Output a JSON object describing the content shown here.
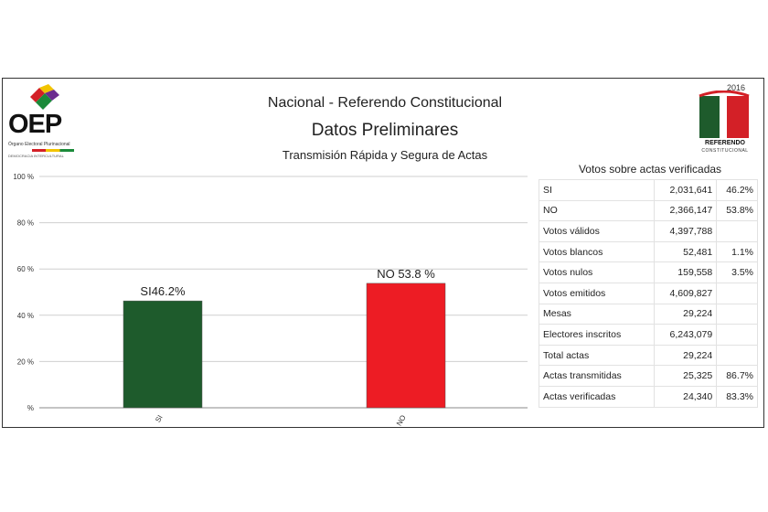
{
  "header": {
    "title_line1": "Nacional - Referendo Constitucional",
    "title_line2": "Datos Preliminares",
    "title_line3": "Transmisión Rápida y Segura de Actas"
  },
  "logo_oep": {
    "acronym": "OEP",
    "subtitle": "Órgano Electoral Plurinacional",
    "tagline": "DEMOCRACIA INTERCULTURAL"
  },
  "logo_referendo": {
    "year": "2016",
    "line1": "REFERENDO",
    "line2": "CONSTITUCIONAL"
  },
  "chart_data": {
    "type": "bar",
    "categories": [
      "SI",
      "NO"
    ],
    "values": [
      46.2,
      53.8
    ],
    "bar_labels": [
      "SI46.2%",
      "NO 53.8 %"
    ],
    "colors": [
      "#1e5b2c",
      "#ed1c24"
    ],
    "yticks": [
      "%",
      "20 %",
      "40 %",
      "60 %",
      "80 %",
      "100 %"
    ],
    "ylim": [
      0,
      100
    ],
    "grid": true
  },
  "results_table": {
    "heading": "Votos sobre actas verificadas",
    "rows": [
      {
        "label": "SI",
        "value": "2,031,641",
        "pct": "46.2%"
      },
      {
        "label": "NO",
        "value": "2,366,147",
        "pct": "53.8%"
      },
      {
        "label": "Votos válidos",
        "value": "4,397,788",
        "pct": ""
      },
      {
        "label": "Votos blancos",
        "value": "52,481",
        "pct": "1.1%"
      },
      {
        "label": "Votos nulos",
        "value": "159,558",
        "pct": "3.5%"
      },
      {
        "label": "Votos emitidos",
        "value": "4,609,827",
        "pct": ""
      },
      {
        "label": "Mesas",
        "value": "29,224",
        "pct": ""
      },
      {
        "label": "Electores inscritos",
        "value": "6,243,079",
        "pct": ""
      },
      {
        "label": "Total actas",
        "value": "29,224",
        "pct": ""
      },
      {
        "label": "Actas transmitidas",
        "value": "25,325",
        "pct": "86.7%"
      },
      {
        "label": "Actas verificadas",
        "value": "24,340",
        "pct": "83.3%"
      }
    ]
  }
}
